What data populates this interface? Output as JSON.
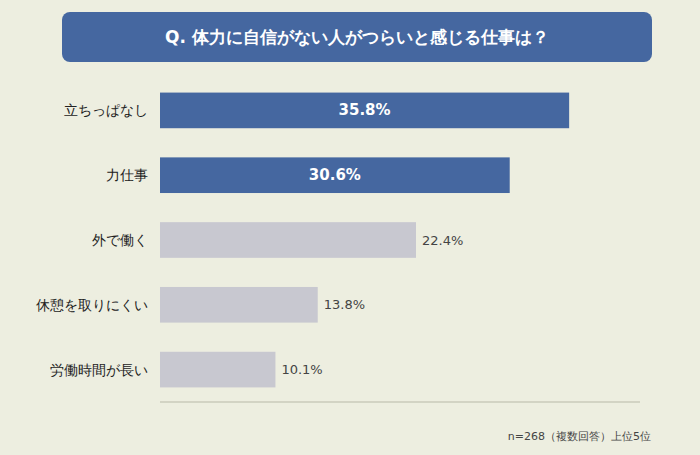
{
  "chart_data": {
    "type": "bar",
    "orientation": "horizontal",
    "title": "Q. 体力に自信がない人がつらいと感じる仕事は？",
    "categories": [
      "労働時間が長い",
      "休憩を取りにくい",
      "外で働く",
      "力仕事",
      "立ちっぱなし"
    ],
    "values": [
      10.1,
      13.8,
      22.4,
      30.6,
      35.8
    ],
    "value_labels": [
      "10.1%",
      "13.8%",
      "22.4%",
      "30.6%",
      "35.8%"
    ],
    "colors": [
      "#c8c8d0",
      "#c8c8d0",
      "#c8c8d0",
      "#4567a0",
      "#4567a0"
    ],
    "xlim": [
      0,
      42
    ],
    "data_labels": true,
    "tick_labels": "y",
    "grid": false,
    "annotations": [
      "n=268（複数回答）上位5位"
    ]
  }
}
